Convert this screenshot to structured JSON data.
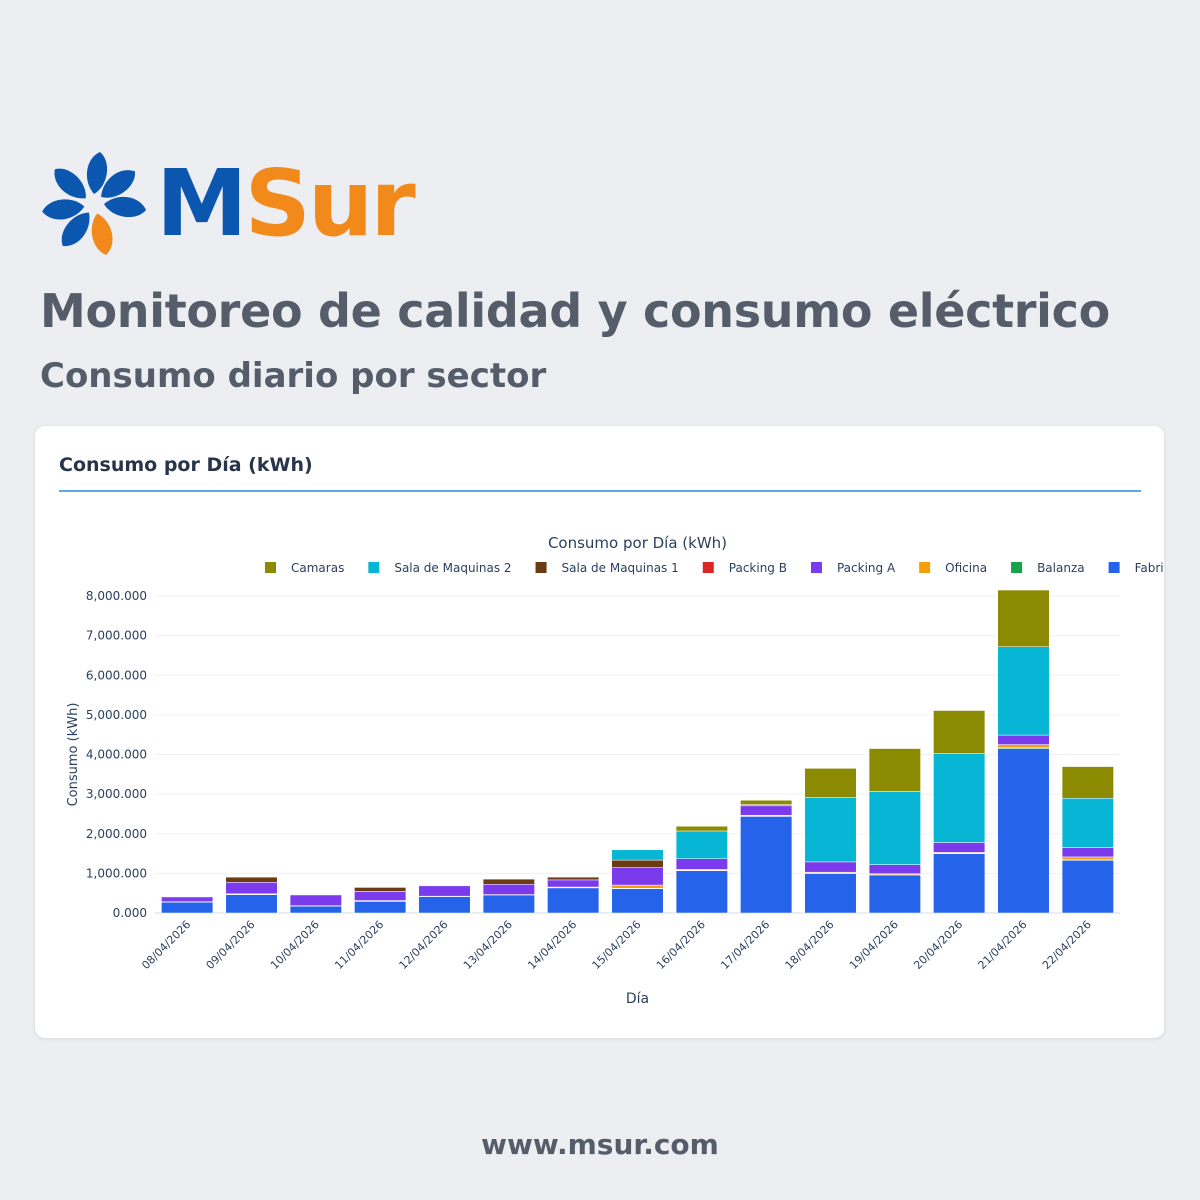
{
  "brand": {
    "name_part1": "M",
    "name_part2": "Sur",
    "primary_color": "#0b57b0",
    "accent_color": "#f28a1b"
  },
  "page": {
    "title": "Monitoreo de calidad y consumo eléctrico",
    "subtitle": "Consumo diario por sector",
    "footer_url": "www.msur.com"
  },
  "card": {
    "title": "Consumo por Día (kWh)"
  },
  "chart_data": {
    "type": "bar",
    "stacked": true,
    "title": "Consumo por Día (kWh)",
    "xlabel": "Día",
    "ylabel": "Consumo (kWh)",
    "ylim": [
      0,
      8000000
    ],
    "yticks": [
      {
        "value": 0,
        "label": "0.000"
      },
      {
        "value": 1000000,
        "label": "1,000.000"
      },
      {
        "value": 2000000,
        "label": "2,000.000"
      },
      {
        "value": 3000000,
        "label": "3,000.000"
      },
      {
        "value": 4000000,
        "label": "4,000.000"
      },
      {
        "value": 5000000,
        "label": "5,000.000"
      },
      {
        "value": 6000000,
        "label": "6,000.000"
      },
      {
        "value": 7000000,
        "label": "7,000.000"
      },
      {
        "value": 8000000,
        "label": "8,000.000"
      }
    ],
    "grid": true,
    "legend_position": "top-right",
    "categories": [
      "08/04/2026",
      "09/04/2026",
      "10/04/2026",
      "11/04/2026",
      "12/04/2026",
      "13/04/2026",
      "14/04/2026",
      "15/04/2026",
      "16/04/2026",
      "17/04/2026",
      "18/04/2026",
      "19/04/2026",
      "20/04/2026",
      "21/04/2026",
      "22/04/2026"
    ],
    "series": [
      {
        "name": "Fabrica",
        "color": "#2563eb",
        "values": [
          280000,
          470000,
          180000,
          300000,
          420000,
          460000,
          640000,
          620000,
          1070000,
          2440000,
          1000000,
          960000,
          1500000,
          4150000,
          1330000
        ]
      },
      {
        "name": "Balanza",
        "color": "#16a34a",
        "values": [
          5000,
          5000,
          5000,
          5000,
          5000,
          5000,
          5000,
          5000,
          10000,
          10000,
          10000,
          10000,
          10000,
          20000,
          15000
        ]
      },
      {
        "name": "Oficina",
        "color": "#f59e0b",
        "values": [
          0,
          10000,
          0,
          10000,
          0,
          0,
          10000,
          80000,
          20000,
          15000,
          20000,
          20000,
          20000,
          80000,
          70000
        ]
      },
      {
        "name": "Packing A",
        "color": "#7c3aed",
        "values": [
          120000,
          290000,
          270000,
          230000,
          260000,
          260000,
          180000,
          450000,
          270000,
          240000,
          260000,
          230000,
          250000,
          240000,
          240000
        ]
      },
      {
        "name": "Packing B",
        "color": "#dc2626",
        "values": [
          0,
          0,
          0,
          0,
          0,
          0,
          0,
          0,
          0,
          0,
          0,
          0,
          0,
          0,
          0
        ]
      },
      {
        "name": "Sala de Maquinas 1",
        "color": "#6b3b12",
        "values": [
          0,
          130000,
          0,
          100000,
          0,
          130000,
          70000,
          180000,
          0,
          0,
          0,
          0,
          0,
          0,
          0
        ]
      },
      {
        "name": "Sala de Maquinas 2",
        "color": "#06b6d4",
        "values": [
          0,
          0,
          0,
          0,
          0,
          0,
          0,
          260000,
          700000,
          30000,
          1630000,
          1850000,
          2250000,
          2230000,
          1240000
        ]
      },
      {
        "name": "Camaras",
        "color": "#8b8a00",
        "values": [
          0,
          0,
          0,
          0,
          0,
          0,
          0,
          0,
          120000,
          110000,
          730000,
          1080000,
          1080000,
          1430000,
          800000
        ]
      }
    ],
    "legend_order": [
      "Camaras",
      "Sala de Maquinas 2",
      "Sala de Maquinas 1",
      "Packing B",
      "Packing A",
      "Oficina",
      "Balanza",
      "Fabrica"
    ]
  }
}
